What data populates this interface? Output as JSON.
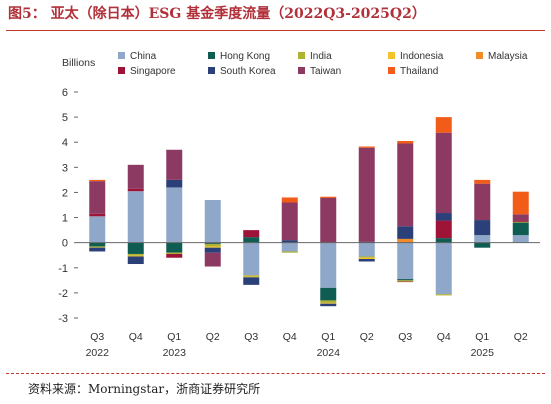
{
  "figure_title": "图5：  亚太（除日本）ESG 基金季度流量（2022Q3-2025Q2）",
  "source": "资料来源：Morningstar，浙商证券研究所",
  "chart_data": {
    "type": "bar",
    "stacked": true,
    "ylabel": "Billions",
    "ylim": [
      -3,
      6
    ],
    "yticks": [
      -3,
      -2,
      -1,
      0,
      1,
      2,
      3,
      4,
      5,
      6
    ],
    "grid": false,
    "legend_position": "top",
    "categories": [
      "Q3 2022",
      "Q4 2022",
      "Q1 2023",
      "Q2 2023",
      "Q3 2023",
      "Q4 2023",
      "Q1 2024",
      "Q2 2024",
      "Q3 2024",
      "Q4 2024",
      "Q1 2025",
      "Q2 2025"
    ],
    "x_tick_labels": [
      "Q3",
      "Q4",
      "Q1",
      "Q2",
      "Q3",
      "Q4",
      "Q1",
      "Q2",
      "Q3",
      "Q4",
      "Q1",
      "Q2"
    ],
    "x_year_labels": [
      "2022",
      "",
      "2023",
      "",
      "",
      "",
      "2024",
      "",
      "",
      "",
      "2025",
      ""
    ],
    "series": [
      {
        "name": "China",
        "color": "#8fa7c8",
        "values": [
          1.05,
          2.05,
          2.2,
          1.7,
          -1.3,
          -0.35,
          -1.8,
          -0.55,
          -1.45,
          -2.05,
          0.3,
          0.3
        ]
      },
      {
        "name": "Hong Kong",
        "color": "#0e5c52",
        "values": [
          -0.15,
          -0.45,
          -0.4,
          -0.05,
          0.22,
          0.0,
          -0.5,
          0.03,
          -0.05,
          0.18,
          -0.2,
          0.5
        ]
      },
      {
        "name": "India",
        "color": "#b0b332",
        "values": [
          -0.05,
          -0.07,
          -0.05,
          -0.1,
          -0.05,
          -0.05,
          -0.1,
          -0.05,
          -0.05,
          -0.05,
          0.0,
          0.03
        ]
      },
      {
        "name": "Indonesia",
        "color": "#f2c32b",
        "values": [
          0.0,
          -0.03,
          0.0,
          -0.05,
          -0.03,
          0.0,
          -0.03,
          -0.05,
          0.0,
          0.0,
          0.0,
          0.0
        ]
      },
      {
        "name": "Malaysia",
        "color": "#f28c28",
        "values": [
          0.0,
          0.0,
          0.0,
          0.0,
          0.0,
          0.0,
          0.0,
          0.0,
          0.15,
          0.0,
          0.0,
          0.0
        ]
      },
      {
        "name": "Singapore",
        "color": "#9e1338",
        "values": [
          0.1,
          0.1,
          -0.15,
          0.0,
          0.28,
          0.0,
          0.0,
          0.0,
          -0.02,
          0.7,
          0.0,
          0.05
        ]
      },
      {
        "name": "South Korea",
        "color": "#2b3f78",
        "values": [
          -0.15,
          -0.3,
          0.3,
          -0.2,
          -0.3,
          0.1,
          -0.1,
          -0.1,
          0.5,
          0.3,
          0.6,
          0.0
        ]
      },
      {
        "name": "Taiwan",
        "color": "#8c3a62",
        "values": [
          1.3,
          0.95,
          1.2,
          -0.55,
          0.0,
          1.5,
          1.78,
          3.75,
          3.3,
          3.2,
          1.45,
          0.25
        ]
      },
      {
        "name": "Thailand",
        "color": "#f25c19",
        "values": [
          0.05,
          0.0,
          0.0,
          0.0,
          0.0,
          0.2,
          0.05,
          0.05,
          0.1,
          0.62,
          0.15,
          0.9
        ]
      }
    ]
  }
}
